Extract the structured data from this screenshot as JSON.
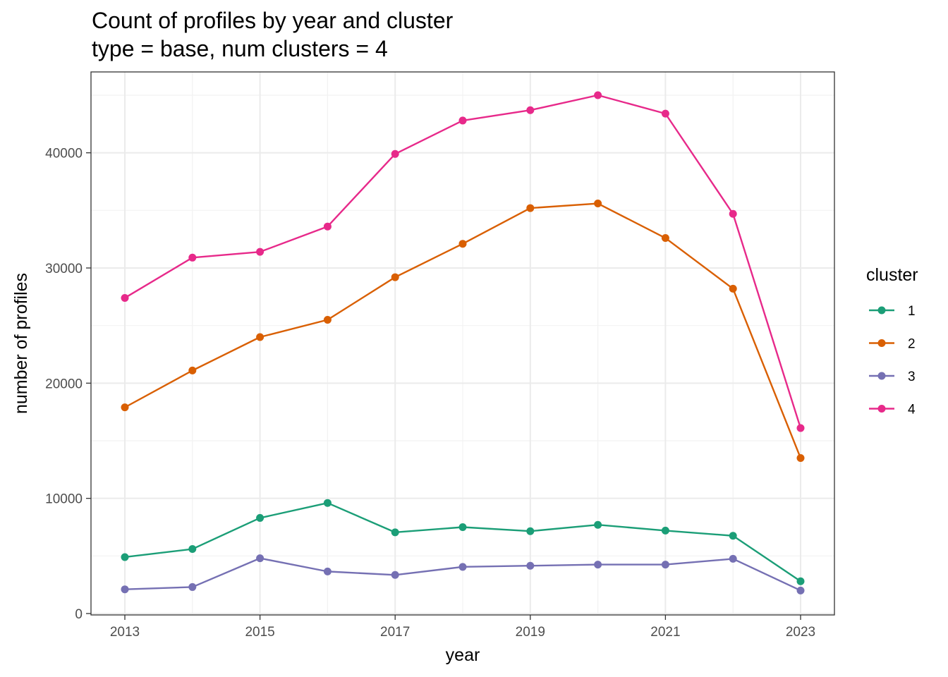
{
  "chart_data": {
    "type": "line",
    "title": "Count of profiles by year and cluster",
    "subtitle": "type = base, num clusters = 4",
    "xlabel": "year",
    "ylabel": "number of profiles",
    "x": [
      2013,
      2014,
      2015,
      2016,
      2017,
      2018,
      2019,
      2020,
      2021,
      2022,
      2023
    ],
    "x_ticks": [
      2013,
      2015,
      2017,
      2019,
      2021,
      2023
    ],
    "y_ticks": [
      0,
      10000,
      20000,
      30000,
      40000
    ],
    "xlim": [
      2012.9,
      2023.1
    ],
    "ylim": [
      0,
      45000
    ],
    "grid": true,
    "legend": {
      "title": "cluster",
      "placement": "right"
    },
    "series": [
      {
        "name": "1",
        "color": "#1b9e77",
        "values": [
          4900,
          5600,
          8300,
          9600,
          7050,
          7500,
          7150,
          7700,
          7200,
          6750,
          2800
        ]
      },
      {
        "name": "2",
        "color": "#d95f02",
        "values": [
          17900,
          21100,
          24000,
          25500,
          29200,
          32100,
          35200,
          35600,
          32600,
          28200,
          13500
        ]
      },
      {
        "name": "3",
        "color": "#7570b3",
        "values": [
          2100,
          2300,
          4800,
          3650,
          3350,
          4050,
          4150,
          4250,
          4250,
          4750,
          2000
        ]
      },
      {
        "name": "4",
        "color": "#e7298a",
        "values": [
          27400,
          30900,
          31400,
          33600,
          39900,
          42800,
          43700,
          45000,
          43400,
          34700,
          16100
        ]
      }
    ]
  }
}
